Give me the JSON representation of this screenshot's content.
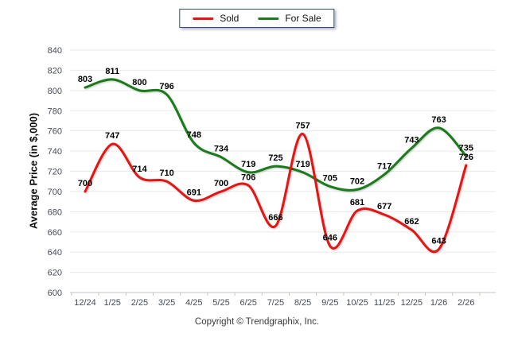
{
  "legend": {
    "items": [
      {
        "label": "Sold"
      },
      {
        "label": "For Sale"
      }
    ]
  },
  "footer": {
    "copyright": "Copyright © Trendgraphix, Inc."
  },
  "chart_data": {
    "type": "line",
    "title": "",
    "xlabel": "",
    "ylabel": "Average Price (in $,000)",
    "categories": [
      "12/24",
      "1/25",
      "2/25",
      "3/25",
      "4/25",
      "5/25",
      "6/25",
      "7/25",
      "8/25",
      "9/25",
      "10/25",
      "11/25",
      "12/25",
      "1/26",
      "2/26"
    ],
    "series": [
      {
        "name": "Sold",
        "color": "#e41513",
        "values": [
          700,
          747,
          714,
          710,
          691,
          700,
          706,
          666,
          757,
          646,
          681,
          677,
          662,
          643,
          726
        ]
      },
      {
        "name": "For Sale",
        "color": "#1b7b1b",
        "values": [
          803,
          811,
          800,
          796,
          748,
          734,
          719,
          725,
          719,
          705,
          702,
          717,
          743,
          763,
          735
        ]
      }
    ],
    "ylim": [
      600,
      840
    ],
    "ytick_step": 20,
    "grid": true,
    "legend_position": "top",
    "data_labels": true
  }
}
